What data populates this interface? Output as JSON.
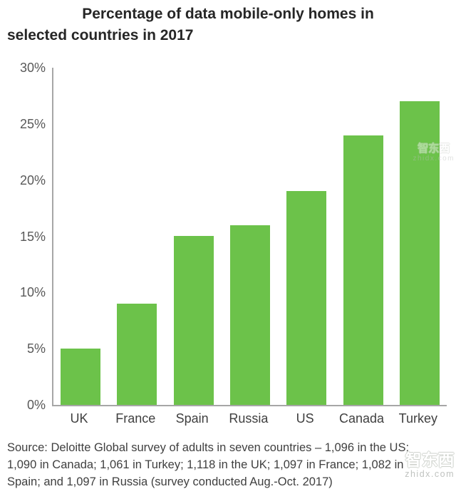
{
  "title": {
    "line1": "Percentage of data mobile-only homes in",
    "line2": "selected countries in 2017"
  },
  "chart_data": {
    "type": "bar",
    "title": "Percentage of data mobile-only homes in selected countries in 2017",
    "categories": [
      "UK",
      "France",
      "Spain",
      "Russia",
      "US",
      "Canada",
      "Turkey"
    ],
    "values": [
      5,
      9,
      15,
      16,
      19,
      24,
      27
    ],
    "unit": "%",
    "xlabel": "",
    "ylabel": "",
    "ylim": [
      0,
      30
    ],
    "ytick_interval": 5,
    "yticks": [
      "30%",
      "25%",
      "20%",
      "15%",
      "10%",
      "5%",
      "0%"
    ],
    "grid": false,
    "legend": false,
    "bar_color": "#6cc24a",
    "axis_color": "#a6a6a6",
    "ylabel_color": "#595959",
    "xlabel_color": "#3f3f3f"
  },
  "source": {
    "lines": [
      "Source: Deloitte Global survey of adults in seven countries – 1,096 in the US;",
      "1,090 in Canada; 1,061 in Turkey; 1,118 in the UK; 1,097 in France; 1,082 in",
      "Spain; and 1,097 in Russia (survey conducted Aug.-Oct. 2017)"
    ]
  },
  "watermark": {
    "cn": "智东西",
    "domain": "zhidx.com"
  }
}
